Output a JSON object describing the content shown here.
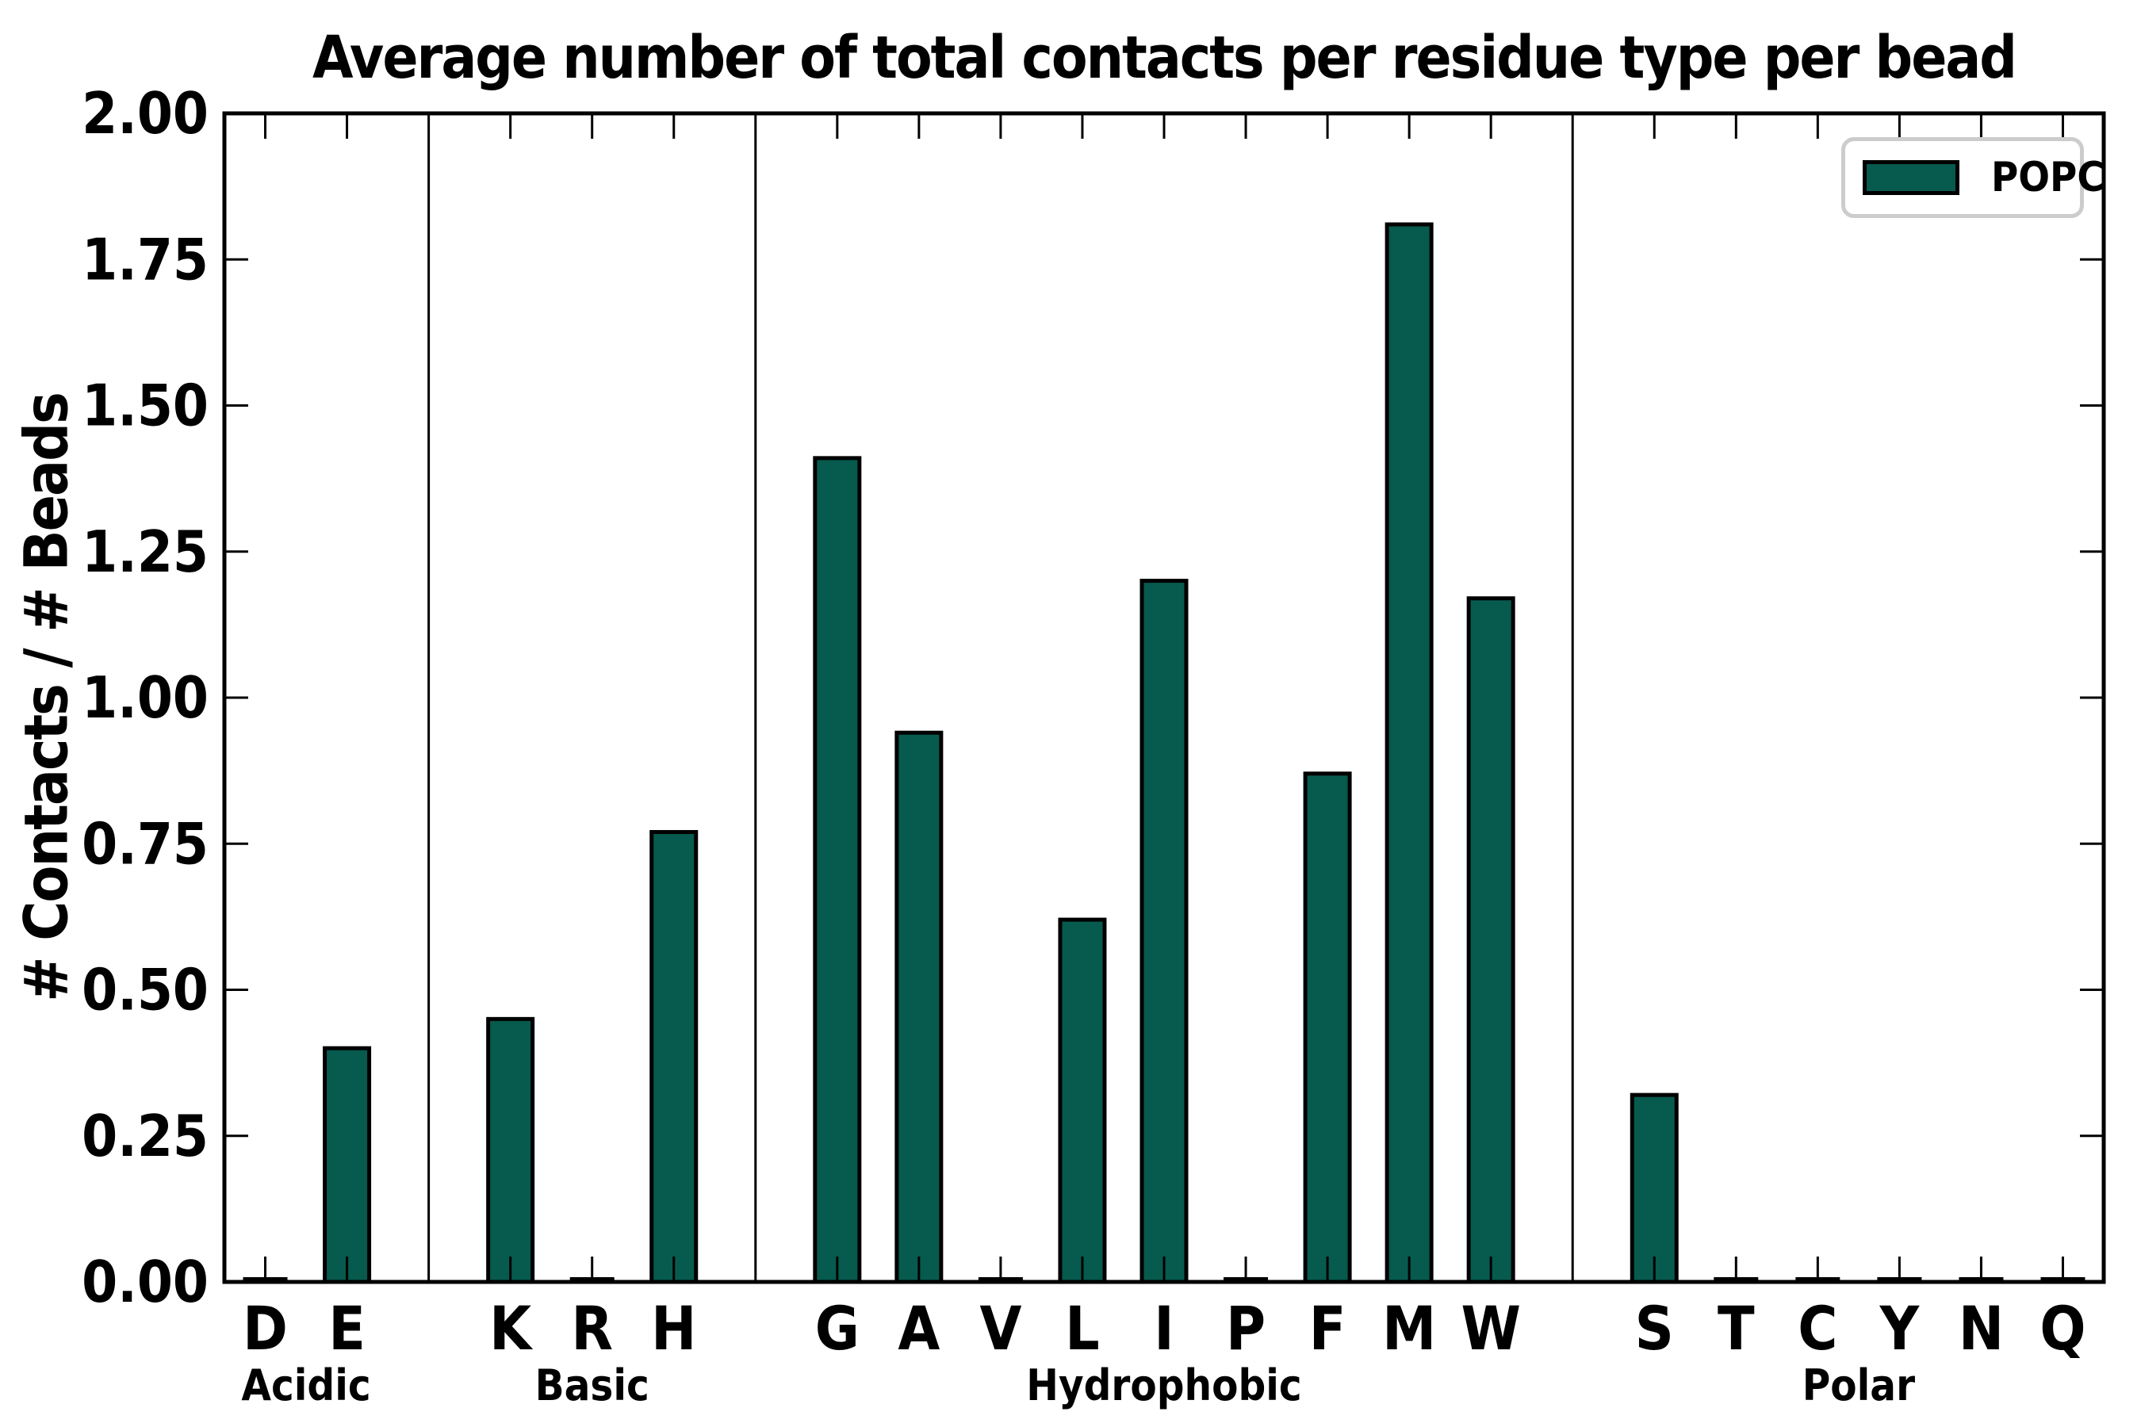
{
  "chart_data": {
    "type": "bar",
    "title": "Average number of total contacts per residue type per bead",
    "xlabel": "",
    "ylabel": "# Contacts / # Beads",
    "ylim": [
      0.0,
      2.0
    ],
    "ytick_step": 0.25,
    "ytick_format_decimals": 2,
    "grid": false,
    "legend": {
      "label": "POPC",
      "position": "upper right"
    },
    "series_name": "POPC",
    "groups": [
      {
        "label": "Acidic",
        "categories": [
          "D",
          "E"
        ],
        "values": [
          0.0,
          0.4
        ]
      },
      {
        "label": "Basic",
        "categories": [
          "K",
          "R",
          "H"
        ],
        "values": [
          0.45,
          0.0,
          0.77
        ]
      },
      {
        "label": "Hydrophobic",
        "categories": [
          "G",
          "A",
          "V",
          "L",
          "I",
          "P",
          "F",
          "M",
          "W"
        ],
        "values": [
          1.41,
          0.94,
          0.0,
          0.62,
          1.2,
          0.0,
          0.87,
          1.81,
          1.17
        ]
      },
      {
        "label": "Polar",
        "categories": [
          "S",
          "T",
          "C",
          "Y",
          "N",
          "Q"
        ],
        "values": [
          0.32,
          0.0,
          0.0,
          0.0,
          0.0,
          0.0
        ]
      }
    ],
    "categories": [
      "D",
      "E",
      "K",
      "R",
      "H",
      "G",
      "A",
      "V",
      "L",
      "I",
      "P",
      "F",
      "M",
      "W",
      "S",
      "T",
      "C",
      "Y",
      "N",
      "Q"
    ],
    "values": [
      0.0,
      0.4,
      0.45,
      0.0,
      0.77,
      1.41,
      0.94,
      0.0,
      0.62,
      1.2,
      0.0,
      0.87,
      1.81,
      1.17,
      0.32,
      0.0,
      0.0,
      0.0,
      0.0,
      0.0
    ]
  },
  "colors": {
    "bar_fill": "#075a4e",
    "bar_edge": "#000000",
    "axis": "#000000",
    "divider": "#000000",
    "tick": "#000000",
    "text": "#000000",
    "legend_border": "#cccccc",
    "background": "#ffffff"
  }
}
